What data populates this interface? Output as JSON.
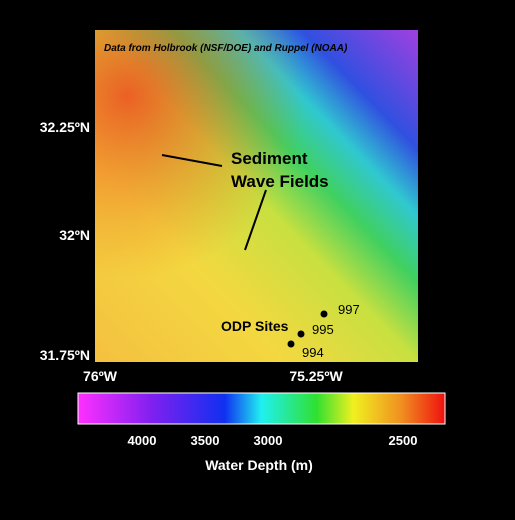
{
  "map": {
    "credit": "Data from Holbrook (NSF/DOE) and Ruppel (NOAA)",
    "annotation_lines": [
      "Sediment",
      "Wave Fields"
    ],
    "sites_label": "ODP Sites",
    "sites": [
      "997",
      "995",
      "994"
    ],
    "lat_labels": [
      "32.25ºN",
      "32ºN",
      "31.75ºN"
    ],
    "lon_labels": [
      "76ºW",
      "75.25ºW"
    ]
  },
  "colorbar": {
    "ticks": [
      4000,
      3500,
      3000,
      2500
    ],
    "label": "Water Depth (m)"
  }
}
